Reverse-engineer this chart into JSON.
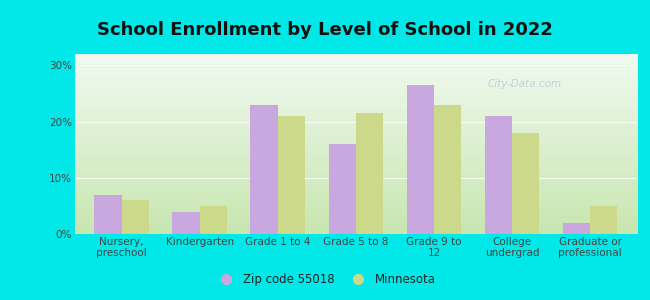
{
  "title": "School Enrollment by Level of School in 2022",
  "categories": [
    "Nursery,\npreschool",
    "Kindergarten",
    "Grade 1 to 4",
    "Grade 5 to 8",
    "Grade 9 to\n12",
    "College\nundergrad",
    "Graduate or\nprofessional"
  ],
  "zip_values": [
    7,
    4,
    23,
    16,
    26.5,
    21,
    2
  ],
  "mn_values": [
    6,
    5,
    21,
    21.5,
    23,
    18,
    5
  ],
  "zip_color": "#c9a8e0",
  "mn_color": "#ccd98a",
  "background_outer": "#00e8e8",
  "background_inner_bottom": "#c8e6b0",
  "background_inner_top": "#f0faf0",
  "yticks": [
    0,
    10,
    20,
    30
  ],
  "ylim": [
    0,
    32
  ],
  "legend_zip": "Zip code 55018",
  "legend_mn": "Minnesota",
  "title_fontsize": 13,
  "tick_fontsize": 7.5,
  "legend_fontsize": 8.5,
  "bar_width": 0.35,
  "watermark": "City-Data.com",
  "watermark_color": "#b8cdd8"
}
